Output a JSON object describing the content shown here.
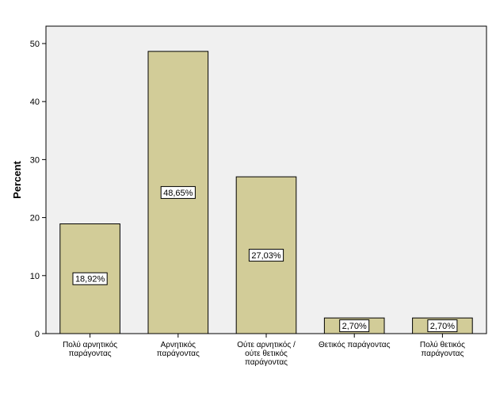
{
  "chart_data": {
    "type": "bar",
    "ylabel": "Percent",
    "ylim": [
      0,
      53
    ],
    "yticks": [
      0,
      10,
      20,
      30,
      40,
      50
    ],
    "categories": [
      [
        "Πολύ αρνητικός",
        "παράγοντας"
      ],
      [
        "Αρνητικός",
        "παράγοντας"
      ],
      [
        "Ούτε αρνητικός /",
        "ούτε θετικός",
        "παράγοντας"
      ],
      [
        "Θετικός παράγοντας"
      ],
      [
        "Πολύ θετικός",
        "παράγοντας"
      ]
    ],
    "values": [
      18.92,
      48.65,
      27.03,
      2.7,
      2.7
    ],
    "data_labels": [
      "18,92%",
      "48,65%",
      "27,03%",
      "2,70%",
      "2,70%"
    ],
    "colors": {
      "bar_fill": "#d2cc98",
      "plot_background": "#f0f0f0",
      "outline": "#000000"
    }
  }
}
